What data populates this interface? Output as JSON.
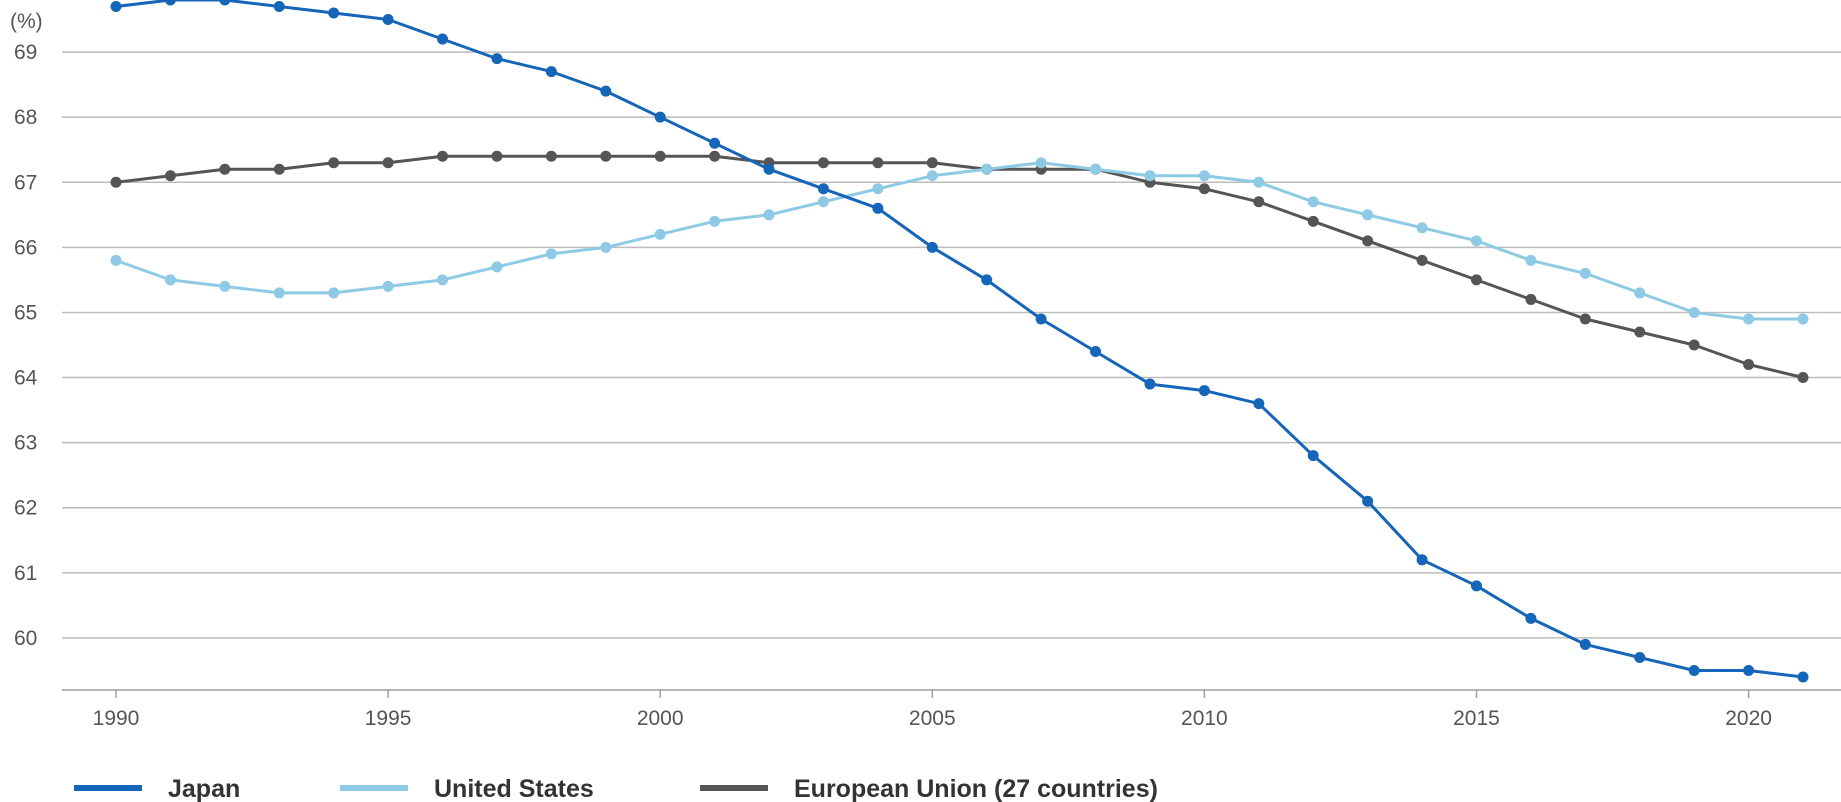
{
  "chart_data": {
    "type": "line",
    "unit_label": "(%)",
    "x": [
      1990,
      1991,
      1992,
      1993,
      1994,
      1995,
      1996,
      1997,
      1998,
      1999,
      2000,
      2001,
      2002,
      2003,
      2004,
      2005,
      2006,
      2007,
      2008,
      2009,
      2010,
      2011,
      2012,
      2013,
      2014,
      2015,
      2016,
      2017,
      2018,
      2019,
      2020,
      2021
    ],
    "x_ticks": [
      "1990",
      "1995",
      "2000",
      "2005",
      "2010",
      "2015",
      "2020"
    ],
    "y_ticks": [
      "60",
      "61",
      "62",
      "63",
      "64",
      "65",
      "66",
      "67",
      "68",
      "69"
    ],
    "ylim": [
      59.2,
      69.8
    ],
    "grid": true,
    "legend_position": "bottom",
    "series": [
      {
        "name": "Japan",
        "color": "#1565b8",
        "values": [
          69.7,
          69.8,
          69.8,
          69.7,
          69.6,
          69.5,
          69.2,
          68.9,
          68.7,
          68.4,
          68.0,
          67.6,
          67.2,
          66.9,
          66.6,
          66.0,
          65.5,
          64.9,
          64.4,
          63.9,
          63.8,
          63.6,
          62.8,
          62.1,
          61.2,
          60.8,
          60.3,
          59.9,
          59.7,
          59.5,
          59.5,
          59.4
        ]
      },
      {
        "name": "United States",
        "color": "#8ecae6",
        "values": [
          65.8,
          65.5,
          65.4,
          65.3,
          65.3,
          65.4,
          65.5,
          65.7,
          65.9,
          66.0,
          66.2,
          66.4,
          66.5,
          66.7,
          66.9,
          67.1,
          67.2,
          67.3,
          67.2,
          67.1,
          67.1,
          67.0,
          66.7,
          66.5,
          66.3,
          66.1,
          65.8,
          65.6,
          65.3,
          65.0,
          64.9,
          64.9
        ]
      },
      {
        "name": "European Union (27 countries)",
        "color": "#555555",
        "values": [
          67.0,
          67.1,
          67.2,
          67.2,
          67.3,
          67.3,
          67.4,
          67.4,
          67.4,
          67.4,
          67.4,
          67.4,
          67.3,
          67.3,
          67.3,
          67.3,
          67.2,
          67.2,
          67.2,
          67.0,
          66.9,
          66.7,
          66.4,
          66.1,
          65.8,
          65.5,
          65.2,
          64.9,
          64.7,
          64.5,
          64.2,
          64.0
        ]
      }
    ]
  }
}
